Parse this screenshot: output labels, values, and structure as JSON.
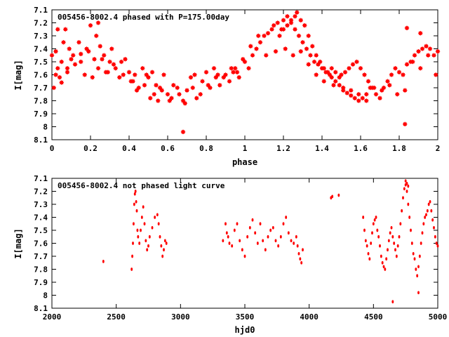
{
  "chart_data": [
    {
      "type": "scatter",
      "title": "005456-8002.4 phased with P=175.00day",
      "xlabel": "phase",
      "ylabel": "I[mag]",
      "xlim": [
        0,
        2
      ],
      "ylim": [
        8.1,
        7.1
      ],
      "y_inverted": true,
      "xticks": [
        "0",
        "0.2",
        "0.4",
        "0.6",
        "0.8",
        "1",
        "1.2",
        "1.4",
        "1.6",
        "1.8",
        "2"
      ],
      "yticks": [
        "7.1",
        "7.2",
        "7.3",
        "7.4",
        "7.5",
        "7.6",
        "7.7",
        "7.8",
        "7.9",
        "8",
        "8.1"
      ],
      "grid": false,
      "marker_color": "#ff0000",
      "series": [
        {
          "x": [
            0.0,
            0.01,
            0.02,
            0.03,
            0.04,
            0.05,
            0.06,
            0.07,
            0.08,
            0.09,
            0.1,
            0.12,
            0.14,
            0.15,
            0.17,
            0.19,
            0.2,
            0.22,
            0.23,
            0.24,
            0.25,
            0.27,
            0.28,
            0.3,
            0.31,
            0.33,
            0.35,
            0.36,
            0.38,
            0.4,
            0.42,
            0.43,
            0.45,
            0.47,
            0.48,
            0.5,
            0.52,
            0.53,
            0.55,
            0.56,
            0.58,
            0.6,
            0.62,
            0.63,
            0.65,
            0.68,
            0.7,
            0.72,
            0.73,
            0.75,
            0.78,
            0.8,
            0.82,
            0.84,
            0.85,
            0.87,
            0.9,
            0.92,
            0.94,
            0.95,
            0.97,
            1.0,
            1.02,
            1.04,
            1.06,
            1.08,
            1.1,
            1.12,
            1.14,
            1.15,
            1.17,
            1.19,
            1.2,
            1.22,
            1.24,
            1.26,
            1.28,
            1.3,
            1.32,
            1.34,
            1.36,
            1.38,
            1.4,
            1.42,
            1.44,
            1.45,
            1.47,
            1.49,
            1.5,
            1.52,
            1.54,
            1.56,
            1.58,
            1.6,
            1.62,
            1.64,
            1.66,
            1.68,
            1.7,
            1.72,
            1.74,
            1.76,
            1.78,
            1.8,
            1.82,
            1.84,
            1.86,
            1.88,
            1.9,
            1.92,
            1.94,
            1.96,
            1.98,
            2.0,
            0.02,
            0.05,
            0.08,
            0.11,
            0.15,
            0.18,
            0.21,
            0.26,
            0.29,
            0.32,
            0.37,
            0.41,
            0.44,
            0.49,
            0.51,
            0.54,
            0.57,
            0.61,
            0.66,
            0.69,
            0.74,
            0.77,
            0.81,
            0.86,
            0.89,
            0.93,
            0.96,
            0.99,
            1.03,
            1.07,
            1.11,
            1.16,
            1.21,
            1.25,
            1.29,
            1.33,
            1.37,
            1.41,
            1.46,
            1.51,
            1.55,
            1.59,
            1.63,
            1.67,
            1.71,
            1.75,
            1.79,
            1.83,
            1.87,
            1.91,
            1.95,
            1.99,
            0.68,
            1.83,
            0.03,
            0.24,
            1.84,
            1.91,
            1.27,
            1.29,
            1.31,
            1.33,
            1.35,
            1.37,
            1.39,
            1.41,
            1.43,
            1.45,
            1.47,
            1.49,
            1.51,
            1.53,
            1.55,
            1.57,
            1.59,
            1.61,
            1.63,
            1.65,
            1.18,
            1.2,
            1.22,
            1.24,
            1.26
          ],
          "y": [
            7.45,
            7.7,
            7.42,
            7.55,
            7.62,
            7.5,
            7.35,
            7.25,
            7.58,
            7.4,
            7.48,
            7.52,
            7.35,
            7.44,
            7.6,
            7.42,
            7.22,
            7.48,
            7.3,
            7.55,
            7.38,
            7.45,
            7.58,
            7.5,
            7.4,
            7.55,
            7.62,
            7.5,
            7.48,
            7.58,
            7.65,
            7.6,
            7.7,
            7.55,
            7.68,
            7.62,
            7.58,
            7.75,
            7.8,
            7.7,
            7.6,
            7.75,
            7.78,
            7.68,
            7.7,
            7.8,
            7.72,
            7.62,
            7.7,
            7.78,
            7.65,
            7.58,
            7.7,
            7.55,
            7.62,
            7.68,
            7.6,
            7.65,
            7.58,
            7.55,
            7.62,
            7.5,
            7.55,
            7.45,
            7.4,
            7.35,
            7.3,
            7.28,
            7.25,
            7.22,
            7.2,
            7.25,
            7.18,
            7.15,
            7.2,
            7.25,
            7.3,
            7.35,
            7.4,
            7.45,
            7.5,
            7.52,
            7.55,
            7.58,
            7.6,
            7.55,
            7.58,
            7.62,
            7.6,
            7.58,
            7.55,
            7.52,
            7.5,
            7.55,
            7.6,
            7.65,
            7.7,
            7.75,
            7.78,
            7.7,
            7.65,
            7.6,
            7.55,
            7.58,
            7.6,
            7.52,
            7.5,
            7.45,
            7.42,
            7.4,
            7.38,
            7.4,
            7.45,
            7.42,
            7.6,
            7.66,
            7.55,
            7.45,
            7.5,
            7.4,
            7.62,
            7.48,
            7.58,
            7.52,
            7.6,
            7.65,
            7.72,
            7.6,
            7.78,
            7.68,
            7.72,
            7.8,
            7.75,
            7.82,
            7.6,
            7.75,
            7.68,
            7.6,
            7.62,
            7.55,
            7.58,
            7.48,
            7.38,
            7.3,
            7.45,
            7.42,
            7.4,
            7.45,
            7.42,
            7.52,
            7.6,
            7.65,
            7.68,
            7.7,
            7.72,
            7.75,
            7.8,
            7.7,
            7.72,
            7.68,
            7.75,
            7.72,
            7.5,
            7.55,
            7.45,
            7.6,
            8.04,
            7.98,
            7.25,
            7.2,
            7.24,
            7.28,
            7.12,
            7.18,
            7.22,
            7.3,
            7.38,
            7.45,
            7.5,
            7.55,
            7.58,
            7.62,
            7.65,
            7.68,
            7.72,
            7.74,
            7.76,
            7.78,
            7.8,
            7.78,
            7.75,
            7.7,
            7.3,
            7.25,
            7.22,
            7.18,
            7.15
          ]
        }
      ]
    },
    {
      "type": "scatter",
      "title": "005456-8002.4 not phased light curve",
      "xlabel": "hjd0",
      "ylabel": "I[mag]",
      "xlim": [
        2000,
        5000
      ],
      "ylim": [
        8.1,
        7.1
      ],
      "y_inverted": true,
      "xticks": [
        "2000",
        "2500",
        "3000",
        "3500",
        "4000",
        "4500",
        "5000"
      ],
      "yticks": [
        "7.1",
        "7.2",
        "7.3",
        "7.4",
        "7.5",
        "7.6",
        "7.7",
        "7.8",
        "7.9",
        "8",
        "8.1"
      ],
      "grid": false,
      "marker_color": "#ff0000",
      "series": [
        {
          "x": [
            2400,
            2620,
            2625,
            2630,
            2635,
            2640,
            2645,
            2650,
            2655,
            2660,
            2665,
            2670,
            2680,
            2690,
            2700,
            2710,
            2720,
            2730,
            2740,
            2750,
            2760,
            2780,
            2800,
            2820,
            2830,
            2840,
            2850,
            2860,
            2870,
            2880,
            2890,
            3330,
            3350,
            3360,
            3370,
            3380,
            3400,
            3420,
            3440,
            3460,
            3480,
            3500,
            3520,
            3540,
            3560,
            3580,
            3600,
            3620,
            3640,
            3660,
            3680,
            3700,
            3720,
            3740,
            3760,
            3780,
            3800,
            3820,
            3840,
            3860,
            3880,
            3900,
            3910,
            3920,
            3930,
            3940,
            3950,
            4170,
            4180,
            4230,
            4420,
            4430,
            4440,
            4450,
            4460,
            4470,
            4480,
            4490,
            4500,
            4510,
            4520,
            4530,
            4540,
            4550,
            4560,
            4570,
            4580,
            4590,
            4600,
            4610,
            4620,
            4630,
            4640,
            4650,
            4660,
            4670,
            4680,
            4690,
            4700,
            4710,
            4720,
            4730,
            4740,
            4750,
            4760,
            4770,
            4780,
            4790,
            4800,
            4810,
            4820,
            4830,
            4840,
            4850,
            4860,
            4870,
            4880,
            4890,
            4900,
            4910,
            4920,
            4930,
            4940,
            4950,
            4960,
            4970,
            4980,
            4990,
            5000,
            4650,
            4850,
            4750,
            4760,
            4770
          ],
          "y": [
            7.74,
            7.8,
            7.7,
            7.6,
            7.45,
            7.3,
            7.22,
            7.2,
            7.28,
            7.35,
            7.5,
            7.55,
            7.6,
            7.5,
            7.4,
            7.32,
            7.45,
            7.58,
            7.65,
            7.62,
            7.55,
            7.48,
            7.4,
            7.38,
            7.45,
            7.55,
            7.62,
            7.7,
            7.65,
            7.58,
            7.6,
            7.58,
            7.45,
            7.52,
            7.55,
            7.6,
            7.62,
            7.5,
            7.45,
            7.58,
            7.65,
            7.7,
            7.55,
            7.48,
            7.42,
            7.52,
            7.6,
            7.45,
            7.58,
            7.65,
            7.55,
            7.5,
            7.48,
            7.58,
            7.62,
            7.55,
            7.45,
            7.4,
            7.52,
            7.58,
            7.6,
            7.55,
            7.62,
            7.68,
            7.72,
            7.75,
            7.65,
            7.25,
            7.24,
            7.23,
            7.4,
            7.5,
            7.58,
            7.62,
            7.68,
            7.72,
            7.6,
            7.52,
            7.45,
            7.42,
            7.4,
            7.5,
            7.55,
            7.62,
            7.7,
            7.75,
            7.78,
            7.8,
            7.72,
            7.65,
            7.58,
            7.52,
            7.48,
            7.55,
            7.6,
            7.65,
            7.7,
            7.62,
            7.55,
            7.45,
            7.35,
            7.25,
            7.18,
            7.15,
            7.2,
            7.3,
            7.4,
            7.5,
            7.6,
            7.68,
            7.72,
            7.8,
            7.85,
            7.78,
            7.7,
            7.6,
            7.52,
            7.45,
            7.4,
            7.38,
            7.35,
            7.3,
            7.28,
            7.35,
            7.42,
            7.48,
            7.55,
            7.6,
            7.62,
            8.05,
            7.98,
            7.12,
            7.14,
            7.16
          ]
        }
      ]
    }
  ]
}
